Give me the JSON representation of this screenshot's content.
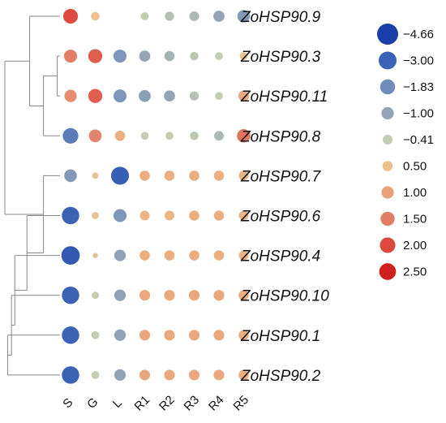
{
  "chart_data": {
    "type": "heatmap",
    "subtype": "bubble-heatmap with hierarchical clustering dendrogram",
    "columns": [
      "S",
      "G",
      "L",
      "R1",
      "R2",
      "R3",
      "R4",
      "R5"
    ],
    "rows": [
      {
        "gene": "ZoHSP90.9",
        "values": [
          2.0,
          0.5,
          null,
          -0.4,
          -0.6,
          -0.7,
          -1.0,
          -1.4
        ]
      },
      {
        "gene": "ZoHSP90.3",
        "values": [
          1.5,
          1.8,
          -1.5,
          -1.0,
          -0.8,
          -0.5,
          -0.4,
          0.4
        ]
      },
      {
        "gene": "ZoHSP90.11",
        "values": [
          1.3,
          1.8,
          -1.5,
          -1.2,
          -1.0,
          -0.6,
          -0.4,
          0.9
        ]
      },
      {
        "gene": "ZoHSP90.8",
        "values": [
          -2.3,
          1.4,
          0.8,
          -0.4,
          -0.4,
          -0.5,
          -0.7,
          1.6
        ]
      },
      {
        "gene": "ZoHSP90.7",
        "values": [
          -1.4,
          0.2,
          -3.2,
          0.8,
          0.8,
          0.8,
          0.8,
          0.7
        ]
      },
      {
        "gene": "ZoHSP90.6",
        "values": [
          -3.0,
          0.3,
          -1.5,
          0.7,
          0.7,
          0.8,
          0.8,
          0.7
        ]
      },
      {
        "gene": "ZoHSP90.4",
        "values": [
          -3.4,
          0.1,
          -1.1,
          0.8,
          0.8,
          0.8,
          0.8,
          0.7
        ]
      },
      {
        "gene": "ZoHSP90.10",
        "values": [
          -3.0,
          -0.3,
          -1.1,
          0.9,
          0.9,
          0.9,
          0.9,
          0.8
        ]
      },
      {
        "gene": "ZoHSP90.1",
        "values": [
          -3.0,
          -0.4,
          -1.1,
          0.9,
          0.9,
          0.9,
          0.9,
          0.8
        ]
      },
      {
        "gene": "ZoHSP90.2",
        "values": [
          -3.0,
          -0.4,
          -1.1,
          0.9,
          0.9,
          0.9,
          0.9,
          0.8
        ]
      }
    ],
    "legend": {
      "placement": "right",
      "entries": [
        {
          "label": "−4.66",
          "value": -4.66,
          "color": "#1a3fa8"
        },
        {
          "label": "−3.00",
          "value": -3.0,
          "color": "#3b63b5"
        },
        {
          "label": "−1.83",
          "value": -1.83,
          "color": "#6f8cba"
        },
        {
          "label": "−1.00",
          "value": -1.0,
          "color": "#94a6b6"
        },
        {
          "label": "−0.41",
          "value": -0.41,
          "color": "#c2cdb1"
        },
        {
          "label": "0.50",
          "value": 0.5,
          "color": "#eec18c"
        },
        {
          "label": "1.00",
          "value": 1.0,
          "color": "#e8a27a"
        },
        {
          "label": "1.50",
          "value": 1.5,
          "color": "#e27e66"
        },
        {
          "label": "2.00",
          "value": 2.0,
          "color": "#dc4a3e"
        },
        {
          "label": "2.50",
          "value": 2.5,
          "color": "#d11f1f"
        }
      ]
    },
    "dendrogram": {
      "leaf_order": [
        "ZoHSP90.9",
        "ZoHSP90.3",
        "ZoHSP90.11",
        "ZoHSP90.8",
        "ZoHSP90.7",
        "ZoHSP90.6",
        "ZoHSP90.4",
        "ZoHSP90.10",
        "ZoHSP90.1",
        "ZoHSP90.2"
      ],
      "tree": [
        [
          0,
          [
            [
              1,
              2
            ],
            3
          ]
        ],
        [
          4,
          [
            5,
            [
              6,
              [
                7,
                [
                  8,
                  9
                ]
              ]
            ]
          ]
        ]
      ],
      "merge_heights": {
        "0-1-2-3": 0.55,
        "1-2": 0.05,
        "1-2-3": 0.3,
        "root": 1.0,
        "4-rest": 0.3,
        "5-rest": 0.6,
        "6-rest": 0.82,
        "7-8-9": 0.88,
        "8-9": 0.95
      }
    }
  }
}
